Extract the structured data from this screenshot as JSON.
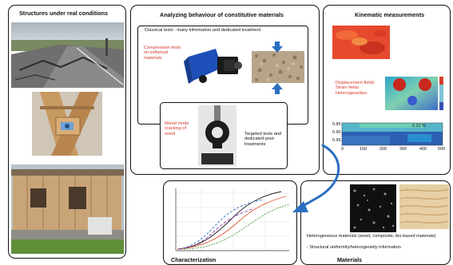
{
  "panels": {
    "structures": {
      "title": "Structures under real conditions"
    },
    "behaviour": {
      "title": "Analyzing behaviour of constitutive materials",
      "subtitle": "Classical tests : many information and dedicated treatment",
      "compression_label": "Compression tests on softwood materials",
      "mixed_mode_label": "Mixed mode cracking of wood",
      "targeted_label": "Targeted tests and dedicated post-treatments"
    },
    "kinematic": {
      "title": "Kinematic measurements",
      "fields_label": "Displacement fields Strain fields Heterogeneities",
      "heatmap_value": "0.12 %",
      "y_ticks": [
        "0.85",
        "0.90",
        "0.95"
      ],
      "x_ticks": [
        "0",
        "100",
        "200",
        "300",
        "400",
        "500"
      ]
    },
    "characterization": {
      "title": "Characterization"
    },
    "materials": {
      "title": "Materials",
      "line1": "Heterogeneous materials (wood, composite, bio-based materials)",
      "line2": "- Structural uniformity/heterogeneity information"
    }
  },
  "colors": {
    "arrow_blue": "#2a6fc0",
    "label_red": "#d23b2a",
    "grass_green": "#5f8f3a"
  }
}
